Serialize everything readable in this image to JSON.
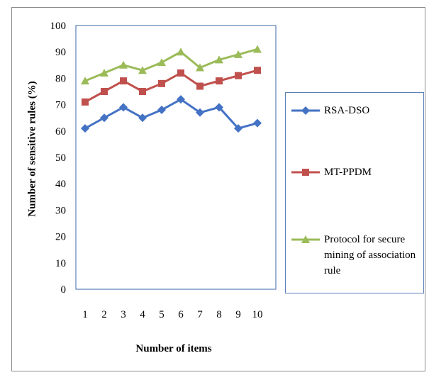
{
  "chart_data": {
    "type": "line",
    "title": "",
    "xlabel": "Number of items",
    "ylabel": "Number of sensitive rules (%)",
    "categories": [
      "1",
      "2",
      "3",
      "4",
      "5",
      "6",
      "7",
      "8",
      "9",
      "10"
    ],
    "ylim": [
      0,
      100
    ],
    "yticks": [
      "0",
      "10",
      "20",
      "30",
      "40",
      "50",
      "60",
      "70",
      "80",
      "90",
      "100"
    ],
    "grid": false,
    "legend_position": "right",
    "series": [
      {
        "name": "RSA-DSO",
        "values": [
          61,
          65,
          69,
          65,
          68,
          72,
          67,
          69,
          61,
          63
        ],
        "color": "#4472c4",
        "marker": "diamond"
      },
      {
        "name": "MT-PPDM",
        "values": [
          71,
          75,
          79,
          75,
          78,
          82,
          77,
          79,
          81,
          83
        ],
        "color": "#c0504d",
        "marker": "square"
      },
      {
        "name": "Protocol for secure mining of association rule",
        "values": [
          79,
          82,
          85,
          83,
          86,
          90,
          84,
          87,
          89,
          91
        ],
        "color": "#9bbb59",
        "marker": "triangle"
      }
    ]
  }
}
